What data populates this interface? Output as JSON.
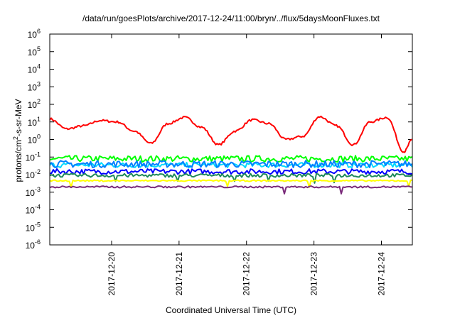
{
  "chart_data": {
    "type": "line",
    "title": "/data/run/goesPlots/archive/2017-12-24/11:00/bryn/../flux/5daysMoonFluxes.txt",
    "xlabel": "Coordinated Universal Time (UTC)",
    "ylabel_parts": {
      "main": "protons/cm",
      "sup": "2",
      "rest": "-s-sr-MeV"
    },
    "yscale": "log",
    "ylim": [
      1e-06,
      1000000.0
    ],
    "y_ticks": [
      {
        "exp": "-6",
        "value": 1e-06
      },
      {
        "exp": "-5",
        "value": 1e-05
      },
      {
        "exp": "-4",
        "value": 0.0001
      },
      {
        "exp": "-3",
        "value": 0.001
      },
      {
        "exp": "-2",
        "value": 0.01
      },
      {
        "exp": "-1",
        "value": 0.1
      },
      {
        "exp": "0",
        "value": 1
      },
      {
        "exp": "1",
        "value": 10
      },
      {
        "exp": "2",
        "value": 100
      },
      {
        "exp": "3",
        "value": 1000
      },
      {
        "exp": "4",
        "value": 10000
      },
      {
        "exp": "5",
        "value": 100000
      },
      {
        "exp": "6",
        "value": 1000000
      }
    ],
    "y_tick_base": "10",
    "xlim": [
      "2017-12-19 02:00",
      "2017-12-24 11:00"
    ],
    "x_ticks": [
      "2017-12-20",
      "2017-12-21",
      "2017-12-22",
      "2017-12-23",
      "2017-12-24"
    ],
    "grid": false,
    "legend": "none",
    "series": [
      {
        "color": "#ff0000",
        "shape": "moon",
        "x": [
          "2017-12-19 02:00",
          "2017-12-19 08:00",
          "2017-12-19 14:00",
          "2017-12-19 20:00",
          "2017-12-20 02:00",
          "2017-12-20 08:00",
          "2017-12-20 14:00",
          "2017-12-20 20:00",
          "2017-12-21 02:00",
          "2017-12-21 08:00",
          "2017-12-21 14:00",
          "2017-12-21 20:00",
          "2017-12-22 02:00",
          "2017-12-22 08:00",
          "2017-12-22 14:00",
          "2017-12-22 20:00",
          "2017-12-23 02:00",
          "2017-12-23 08:00",
          "2017-12-23 14:00",
          "2017-12-23 20:00",
          "2017-12-24 02:00",
          "2017-12-24 08:00",
          "2017-12-24 11:00"
        ],
        "values": [
          15,
          4,
          6,
          12,
          10,
          3,
          0.6,
          8,
          18,
          5,
          0.5,
          3,
          13,
          8,
          1,
          1.5,
          20,
          6,
          0.5,
          10,
          18,
          0.2,
          1
        ]
      },
      {
        "color": "#00ff00",
        "level": 0.08,
        "spread": 0.18,
        "dips": 0
      },
      {
        "color": "#00d8ff",
        "level": 0.035,
        "spread": 0.15,
        "dips": 0
      },
      {
        "color": "#0000ff",
        "level": 0.015,
        "spread": 0.15,
        "dips": 0
      },
      {
        "color": "#0080ff",
        "level": 0.04,
        "spread": 0.2,
        "dips": 0
      },
      {
        "color": "#1e8a5a",
        "level": 0.009,
        "spread": 0.1,
        "dips": 1
      },
      {
        "color": "#ffff00",
        "level": 0.0045,
        "spread": 0.04,
        "dips": 1
      },
      {
        "color": "#7a2a7a",
        "level": 0.002,
        "spread": 0.05,
        "dips": 1
      }
    ]
  }
}
